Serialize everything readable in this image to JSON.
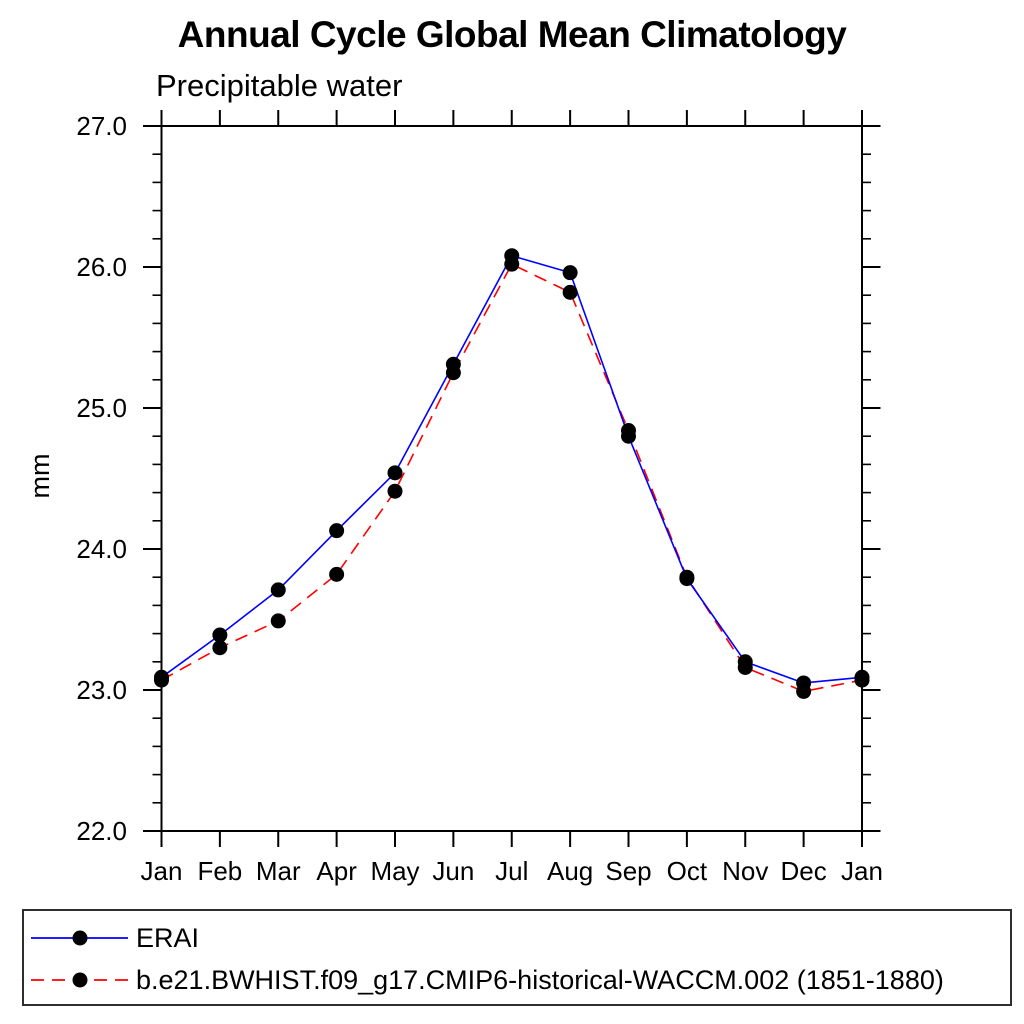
{
  "chart_data": {
    "type": "line",
    "title": "Annual Cycle Global Mean Climatology",
    "subtitle": "Precipitable water",
    "ylabel": "mm",
    "xlabel": "",
    "categories": [
      "Jan",
      "Feb",
      "Mar",
      "Apr",
      "May",
      "Jun",
      "Jul",
      "Aug",
      "Sep",
      "Oct",
      "Nov",
      "Dec",
      "Jan"
    ],
    "series": [
      {
        "name": "ERAI",
        "line_color": "#0000ff",
        "line_style": "solid",
        "marker": "filled-circle",
        "marker_color": "#000000",
        "values": [
          23.09,
          23.39,
          23.71,
          24.13,
          24.54,
          25.31,
          26.08,
          25.96,
          24.8,
          23.79,
          23.2,
          23.05,
          23.09
        ]
      },
      {
        "name": "b.e21.BWHIST.f09_g17.CMIP6-historical-WACCM.002 (1851-1880)",
        "line_color": "#ff0000",
        "line_style": "dashed",
        "marker": "filled-circle",
        "marker_color": "#000000",
        "values": [
          23.07,
          23.3,
          23.49,
          23.82,
          24.41,
          25.25,
          26.02,
          25.82,
          24.84,
          23.8,
          23.16,
          22.99,
          23.07
        ]
      }
    ],
    "ylim": [
      22.0,
      27.0
    ],
    "ytick_values": [
      22.0,
      23.0,
      24.0,
      25.0,
      26.0,
      27.0
    ],
    "ytick_labels": [
      "22.0",
      "23.0",
      "24.0",
      "25.0",
      "26.0",
      "27.0"
    ],
    "ytick_minor_step": 0.2,
    "grid": false,
    "legend_position": "bottom-box",
    "axis_color": "#000000",
    "background_color": "#ffffff"
  }
}
